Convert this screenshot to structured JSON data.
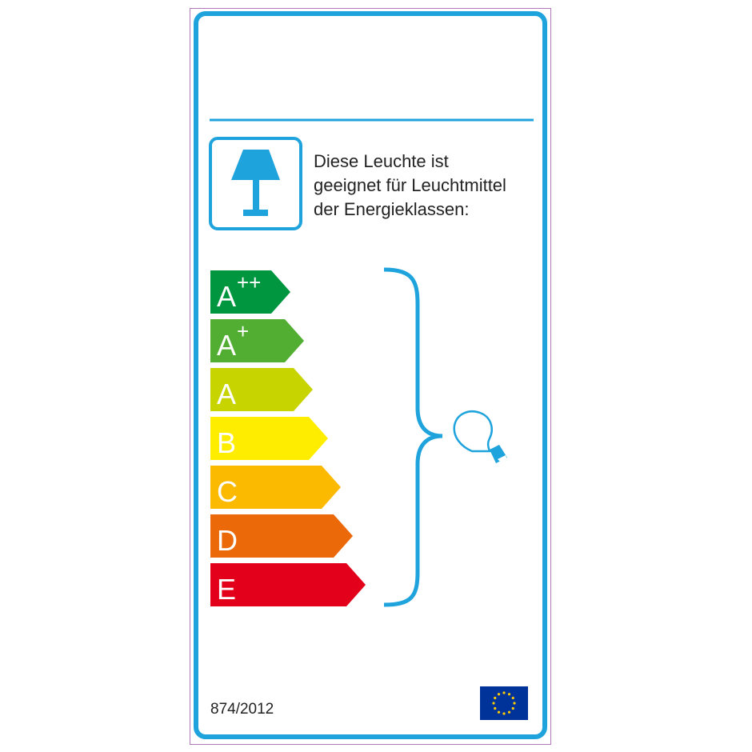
{
  "description_lines": [
    "Diese Leuchte ist",
    "geeignet für Leuchtmittel",
    "der Energieklassen:"
  ],
  "regulation": "874/2012",
  "energy_classes": [
    {
      "letter": "A",
      "sup": "++",
      "color": "#00963f"
    },
    {
      "letter": "A",
      "sup": "+",
      "color": "#52ae32"
    },
    {
      "letter": "A",
      "sup": "",
      "color": "#c8d400"
    },
    {
      "letter": "B",
      "sup": "",
      "color": "#ffed00"
    },
    {
      "letter": "C",
      "sup": "",
      "color": "#fbba00"
    },
    {
      "letter": "D",
      "sup": "",
      "color": "#eb6909"
    },
    {
      "letter": "E",
      "sup": "",
      "color": "#e2001a"
    }
  ],
  "icons": {
    "lamp": "table-lamp-icon",
    "bulb": "light-bulb-icon",
    "flag": "eu-flag-icon"
  },
  "colors": {
    "frame": "#1fa3dc",
    "outer_border": "#b07ab8",
    "eu_blue": "#003399",
    "eu_star": "#ffcc00"
  }
}
